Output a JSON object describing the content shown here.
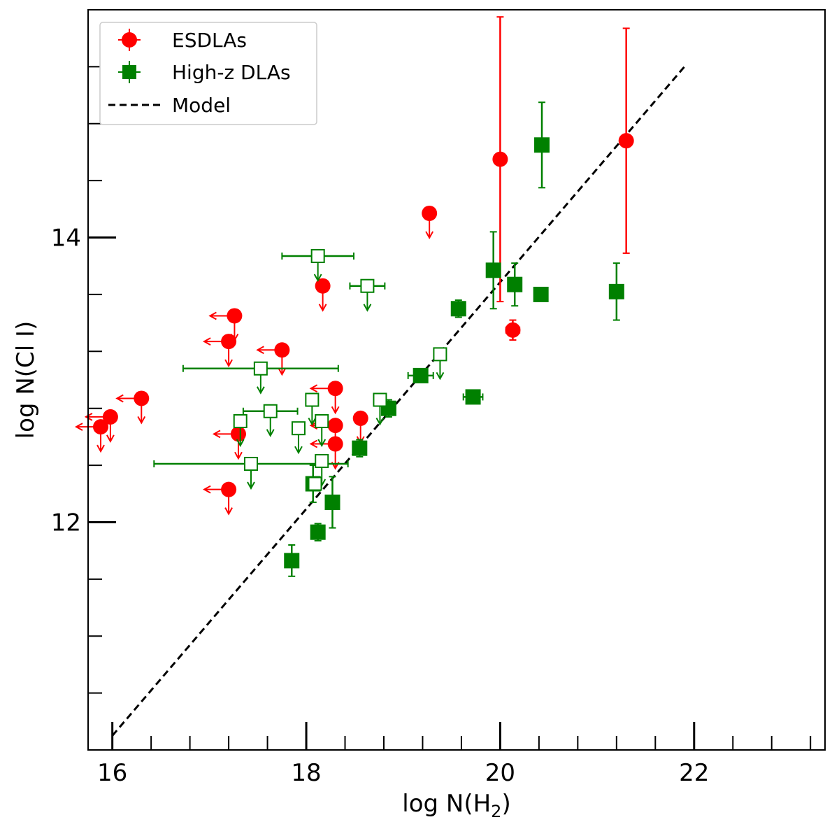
{
  "chart_data": {
    "type": "scatter",
    "title": "",
    "xlabel_main": "log N(H",
    "xlabel_sub": "2",
    "xlabel_end": ")",
    "ylabel": "log N(Cl I)",
    "xlim": [
      15.75,
      23.35
    ],
    "ylim": [
      10.4,
      15.6
    ],
    "xticks": [
      16,
      18,
      20,
      22
    ],
    "xtick_labels": [
      "16",
      "18",
      "20",
      "22"
    ],
    "yticks": [
      12,
      14
    ],
    "ytick_labels": [
      "12",
      "14"
    ],
    "x_minor_step": 0.4,
    "y_minor_step": 0.4,
    "legend": {
      "position": "top-left",
      "entries": [
        "ESDLAs",
        "High-z DLAs",
        "Model"
      ]
    },
    "colors": {
      "esdla": "#ff0000",
      "highz": "#008000",
      "model": "#000000"
    },
    "model_line": {
      "x": [
        16.0,
        21.9
      ],
      "y": [
        10.5,
        15.2
      ]
    },
    "series": [
      {
        "name": "ESDLAs",
        "marker": "circle",
        "points": [
          {
            "x": 19.27,
            "y": 14.17,
            "ul": true
          },
          {
            "x": 18.17,
            "y": 13.66,
            "ul": true
          },
          {
            "x": 17.26,
            "y": 13.45,
            "ul": true,
            "xul": true
          },
          {
            "x": 17.2,
            "y": 13.27,
            "ul": true,
            "xul": true
          },
          {
            "x": 17.75,
            "y": 13.21,
            "ul": true,
            "xul": true
          },
          {
            "x": 18.3,
            "y": 12.94,
            "ul": true,
            "xul": true
          },
          {
            "x": 16.3,
            "y": 12.87,
            "ul": true,
            "xul": true
          },
          {
            "x": 15.98,
            "y": 12.74,
            "ul": true,
            "xul": true
          },
          {
            "x": 15.88,
            "y": 12.67,
            "ul": true,
            "xul": true
          },
          {
            "x": 17.3,
            "y": 12.62,
            "ul": true,
            "xul": true
          },
          {
            "x": 18.3,
            "y": 12.68,
            "ul": true,
            "xul": true
          },
          {
            "x": 18.56,
            "y": 12.73,
            "ul": true
          },
          {
            "x": 18.3,
            "y": 12.55,
            "ul": true,
            "xul": true
          },
          {
            "x": 17.2,
            "y": 12.23,
            "ul": true,
            "xul": true
          },
          {
            "x": 20.13,
            "y": 13.35,
            "yerr": [
              0.07,
              0.07
            ],
            "xerr": [
              0.07,
              0.07
            ]
          },
          {
            "x": 20.0,
            "y": 14.55,
            "yerr": [
              1.0,
              1.0
            ]
          },
          {
            "x": 21.3,
            "y": 14.68,
            "yerr": [
              0.79,
              0.79
            ]
          }
        ]
      },
      {
        "name": "High-z DLAs",
        "marker": "square",
        "points": [
          {
            "x": 20.43,
            "y": 14.65,
            "yerr": [
              0.3,
              0.3
            ]
          },
          {
            "x": 19.93,
            "y": 13.77,
            "yerr": [
              0.27,
              0.27
            ]
          },
          {
            "x": 20.15,
            "y": 13.67,
            "yerr": [
              0.15,
              0.15
            ]
          },
          {
            "x": 20.42,
            "y": 13.6,
            "yerr": [
              0,
              0
            ]
          },
          {
            "x": 21.2,
            "y": 13.62,
            "yerr": [
              0.2,
              0.2
            ]
          },
          {
            "x": 19.57,
            "y": 13.5,
            "yerr": [
              0.06,
              0.06
            ],
            "xerr": [
              0.07,
              0.07
            ]
          },
          {
            "x": 19.18,
            "y": 13.03,
            "xerr": [
              0.13,
              0.13
            ]
          },
          {
            "x": 19.72,
            "y": 12.88,
            "xerr": [
              0.1,
              0.1
            ]
          },
          {
            "x": 18.85,
            "y": 12.8,
            "yerr": [
              0.06,
              0.06
            ]
          },
          {
            "x": 18.55,
            "y": 12.52,
            "yerr": [
              0.06,
              0.06
            ]
          },
          {
            "x": 18.07,
            "y": 12.27,
            "yerr": [
              0.13,
              0.13
            ]
          },
          {
            "x": 18.27,
            "y": 12.14,
            "yerr": [
              0.18,
              0.18
            ]
          },
          {
            "x": 18.12,
            "y": 11.93,
            "yerr": [
              0.06,
              0.06
            ]
          },
          {
            "x": 17.85,
            "y": 11.73,
            "yerr": [
              0.11,
              0.11
            ]
          },
          {
            "x": 18.12,
            "y": 13.87,
            "ul": true,
            "open": true,
            "xerr": [
              0.37,
              0.37
            ]
          },
          {
            "x": 18.63,
            "y": 13.66,
            "ul": true,
            "open": true,
            "xerr": [
              0.18,
              0.18
            ]
          },
          {
            "x": 19.38,
            "y": 13.18,
            "ul": true,
            "open": true
          },
          {
            "x": 17.53,
            "y": 13.08,
            "ul": true,
            "open": true,
            "xerr": [
              0.8,
              0.8
            ]
          },
          {
            "x": 18.06,
            "y": 12.86,
            "ul": true,
            "open": true
          },
          {
            "x": 18.76,
            "y": 12.86,
            "ul": true,
            "open": true
          },
          {
            "x": 17.63,
            "y": 12.78,
            "ul": true,
            "open": true,
            "xerr": [
              0.28,
              0.28
            ]
          },
          {
            "x": 17.32,
            "y": 12.71,
            "ul": true,
            "open": true
          },
          {
            "x": 18.16,
            "y": 12.71,
            "ul": true,
            "open": true
          },
          {
            "x": 17.92,
            "y": 12.66,
            "ul": true,
            "open": true
          },
          {
            "x": 17.43,
            "y": 12.41,
            "ul": true,
            "open": true,
            "xerr": [
              1.0,
              1.0
            ]
          },
          {
            "x": 18.16,
            "y": 12.43,
            "ul": true,
            "open": true
          },
          {
            "x": 18.09,
            "y": 12.27,
            "open": true
          }
        ]
      }
    ]
  }
}
